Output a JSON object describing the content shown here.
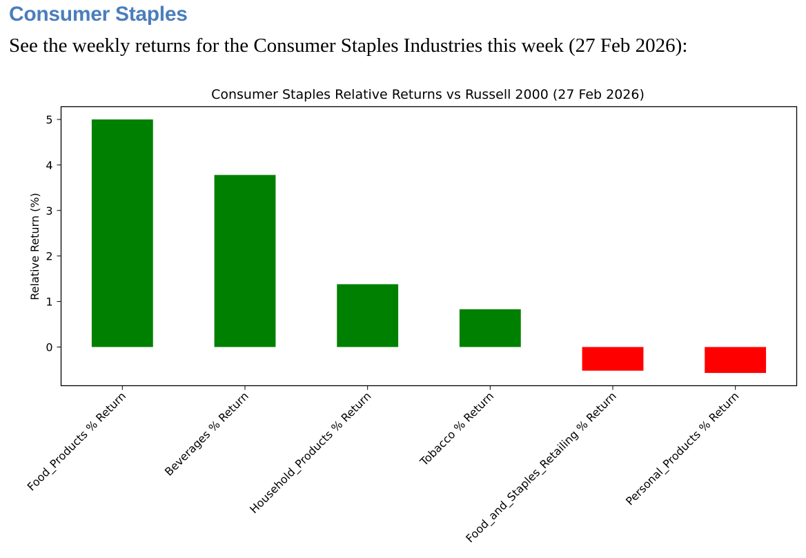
{
  "page": {
    "heading": "Consumer Staples",
    "intro": "See the weekly returns for the Consumer Staples Industries this week (27 Feb 2026):"
  },
  "chart_data": {
    "type": "bar",
    "title": "Consumer Staples Relative Returns vs Russell 2000 (27 Feb 2026)",
    "xlabel": "",
    "ylabel": "Relative Return (%)",
    "categories": [
      "Food_Products % Return",
      "Beverages % Return",
      "Household_Products % Return",
      "Tobacco % Return",
      "Food_and_Staples_Retailing % Return",
      "Personal_Products % Return"
    ],
    "values": [
      5.0,
      3.78,
      1.38,
      0.83,
      -0.52,
      -0.57
    ],
    "ylim": [
      -0.85,
      5.28
    ],
    "yticks": [
      0,
      1,
      2,
      3,
      4,
      5
    ],
    "grid": false,
    "colors": {
      "positive": "#008000",
      "negative": "#ff0000"
    }
  }
}
